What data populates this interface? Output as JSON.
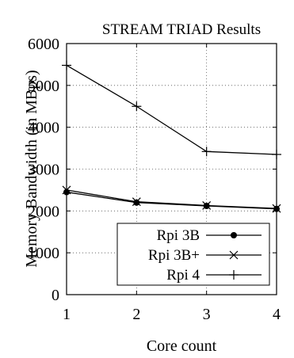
{
  "chart_data": {
    "type": "line",
    "title": "STREAM TRIAD Results",
    "xlabel": "Core count",
    "ylabel": "Memory Bandwidth (in MBps)",
    "x": [
      1,
      2,
      3,
      4
    ],
    "xlim": [
      1,
      4
    ],
    "ylim": [
      0,
      6000
    ],
    "xticks": [
      "1",
      "2",
      "3",
      "4"
    ],
    "yticks": [
      "0",
      "1000",
      "2000",
      "3000",
      "4000",
      "5000",
      "6000"
    ],
    "grid": true,
    "legend_position": "bottom-right",
    "series": [
      {
        "name": "Rpi 3B",
        "marker": "dot",
        "values": [
          2450,
          2200,
          2120,
          2050
        ]
      },
      {
        "name": "Rpi 3B+",
        "marker": "cross",
        "values": [
          2500,
          2220,
          2130,
          2060
        ]
      },
      {
        "name": "Rpi 4",
        "marker": "plus",
        "values": [
          5480,
          4500,
          3420,
          3350
        ]
      }
    ]
  }
}
